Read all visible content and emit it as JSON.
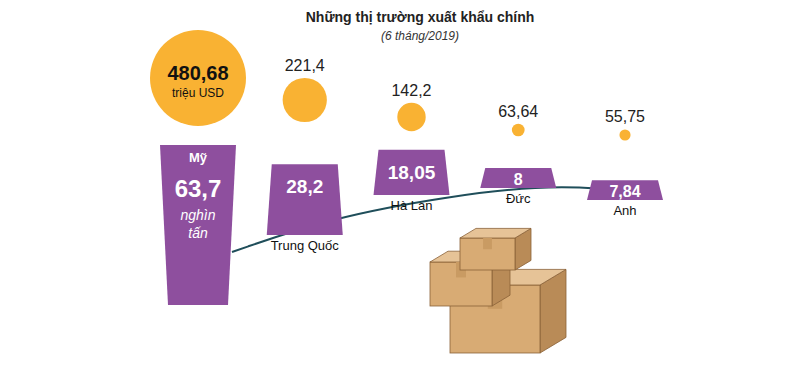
{
  "chart_data": {
    "type": "bar",
    "title": "Những thị trường xuất khẩu chính",
    "subtitle": "(6 tháng/2019)",
    "categories": [
      "Mỹ",
      "Trung Quốc",
      "Hà Lan",
      "Đức",
      "Anh"
    ],
    "data_labels": true,
    "series": [
      {
        "name": "triệu USD",
        "type": "bubble",
        "color": "#f9b233",
        "values": [
          480.68,
          221.4,
          142.2,
          63.64,
          55.75
        ],
        "value_labels": [
          "480,68",
          "221,4",
          "142,2",
          "63,64",
          "55,75"
        ]
      },
      {
        "name": "nghìn tấn",
        "type": "bar",
        "color": "#8e4f9e",
        "values": [
          63.7,
          28.2,
          18.05,
          8,
          7.84
        ],
        "value_labels": [
          "63,7",
          "28,2",
          "18,05",
          "8",
          "7,84"
        ]
      }
    ]
  }
}
